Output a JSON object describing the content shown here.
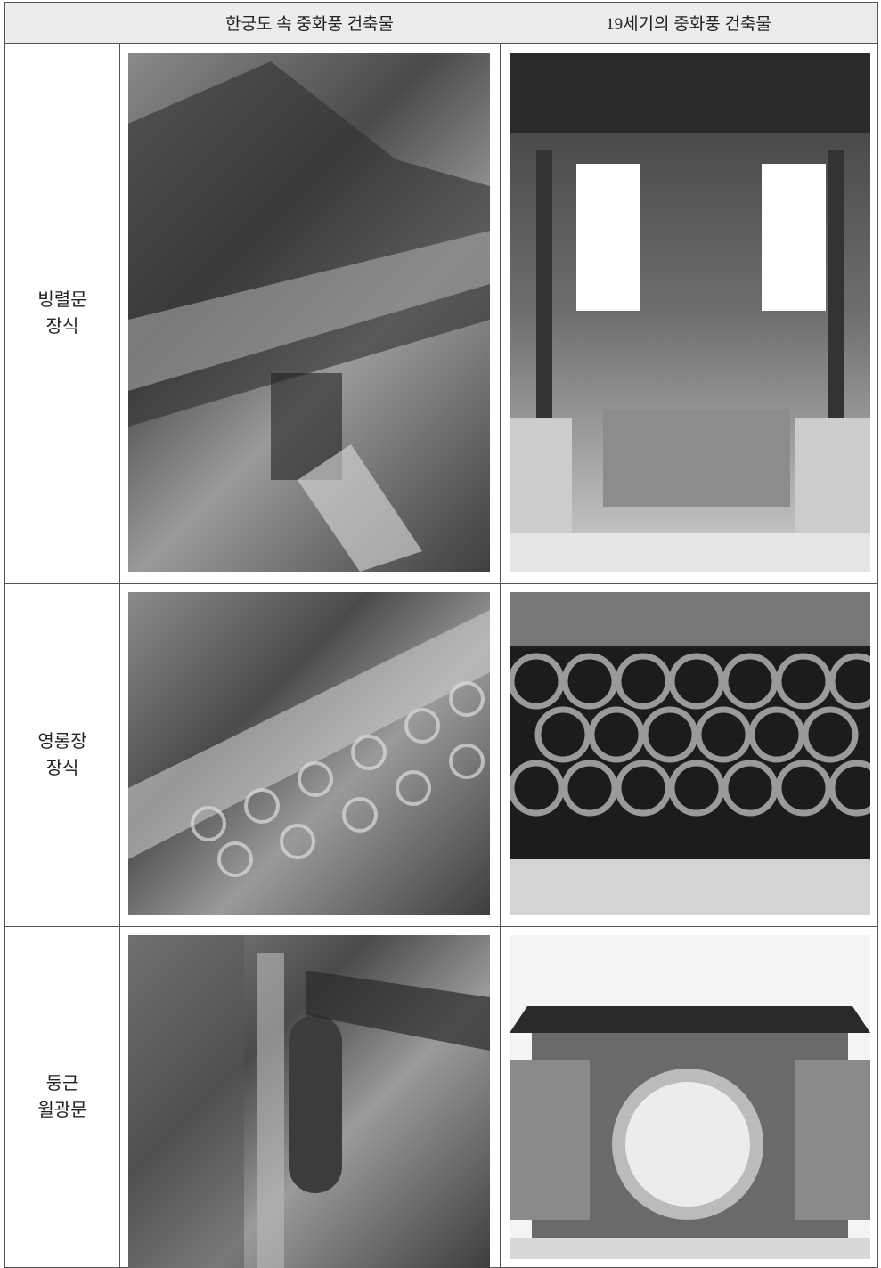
{
  "table": {
    "header": [
      "",
      "한궁도 속 중화풍 건축물",
      "19세기의 중화풍 건축물"
    ],
    "rows": [
      {
        "label": [
          "빙렬문",
          "장식"
        ]
      },
      {
        "label": [
          "영롱장",
          "장식"
        ]
      },
      {
        "label": [
          "둥근",
          "월광문"
        ]
      }
    ]
  }
}
